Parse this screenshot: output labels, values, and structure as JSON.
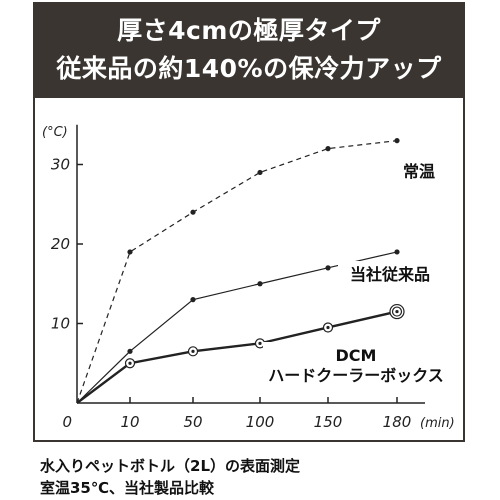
{
  "header": {
    "line1": "厚さ4cmの極厚タイプ",
    "line2": "従来品の約140%の保冷力アップ"
  },
  "footer": {
    "line1": "水入りペットボトル（2L）の表面測定",
    "line2": "室温35℃、当社製品比較"
  },
  "colors": {
    "header_bg": "#3a3530",
    "line": "#222222",
    "label_box": "#ffffff"
  },
  "chart_data": {
    "type": "line",
    "x_unit": "(min)",
    "y_unit": "(°C)",
    "x_ticks": [
      "0",
      "10",
      "50",
      "100",
      "150",
      "180"
    ],
    "y_ticks": [
      "10",
      "20",
      "30"
    ],
    "ylim": [
      0,
      35
    ],
    "grid": false,
    "series": [
      {
        "name": "常温",
        "style": "dashed",
        "values": [
          0,
          19,
          24,
          29,
          32,
          33
        ]
      },
      {
        "name": "当社従来品",
        "style": "solid-thin",
        "values": [
          0,
          6.5,
          13,
          15,
          17,
          19
        ]
      },
      {
        "name": "DCM ハードクーラーボックス",
        "name_lines": [
          "DCM",
          "ハードクーラーボックス"
        ],
        "style": "solid-thick-open-markers",
        "values": [
          0,
          5,
          6.5,
          7.5,
          9.5,
          11.5
        ]
      }
    ]
  }
}
